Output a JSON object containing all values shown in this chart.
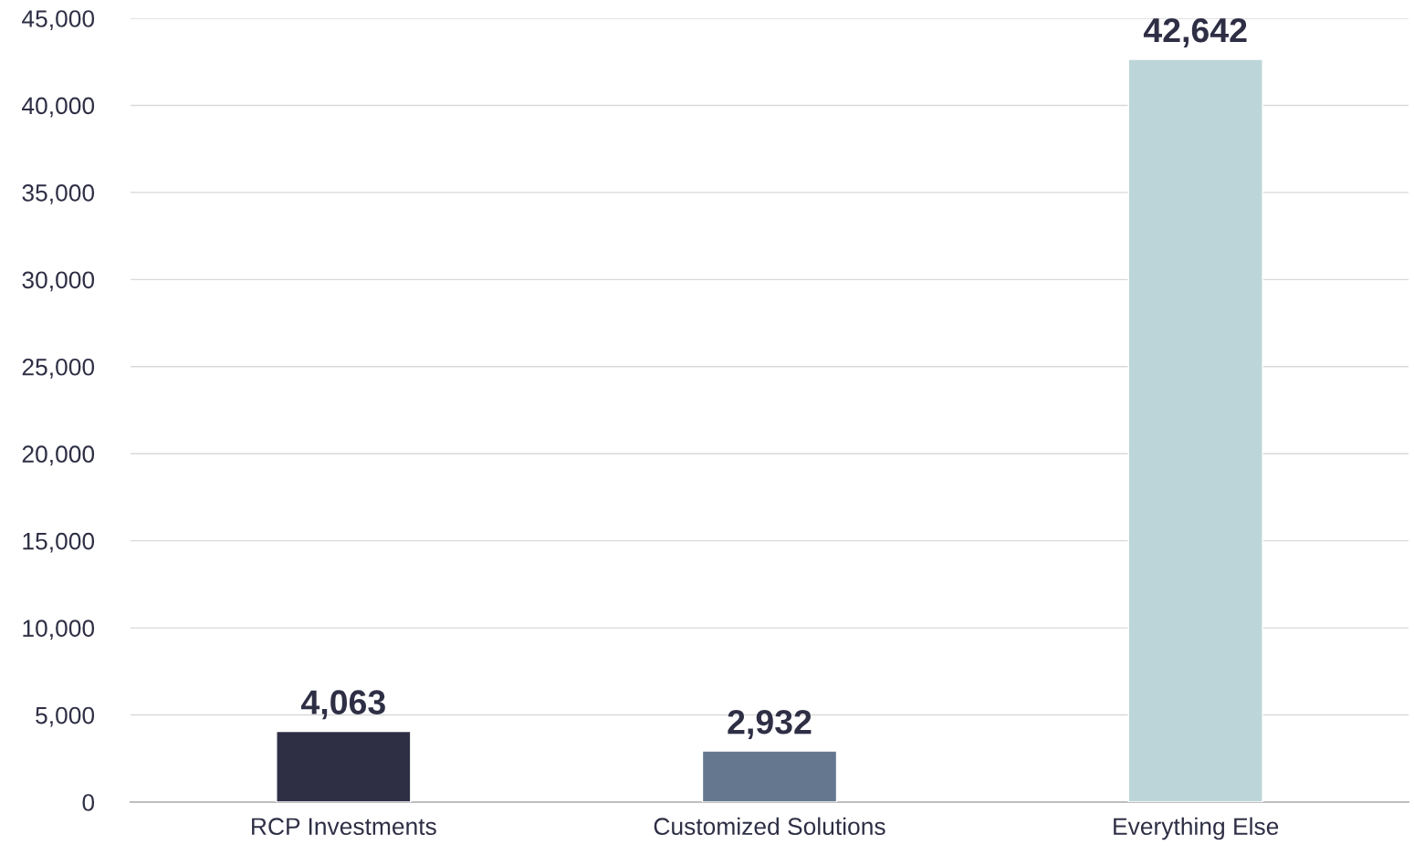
{
  "chart_data": {
    "type": "bar",
    "categories": [
      "RCP Investments",
      "Customized Solutions",
      "Everything Else"
    ],
    "values": [
      4063,
      2932,
      42642
    ],
    "colors": [
      "#2e2f45",
      "#64778f",
      "#bcd5d8"
    ],
    "value_labels": [
      "4,063",
      "2,932",
      "42,642"
    ],
    "ylim": [
      0,
      45000
    ],
    "yticks": [
      {
        "value": 0,
        "label": "0"
      },
      {
        "value": 5000,
        "label": "5,000"
      },
      {
        "value": 10000,
        "label": "10,000"
      },
      {
        "value": 15000,
        "label": "15,000"
      },
      {
        "value": 20000,
        "label": "20,000"
      },
      {
        "value": 25000,
        "label": "25,000"
      },
      {
        "value": 30000,
        "label": "30,000"
      },
      {
        "value": 35000,
        "label": "35,000"
      },
      {
        "value": 40000,
        "label": "40,000"
      },
      {
        "value": 45000,
        "label": "45,000"
      }
    ],
    "grid": "y",
    "legend": false
  }
}
